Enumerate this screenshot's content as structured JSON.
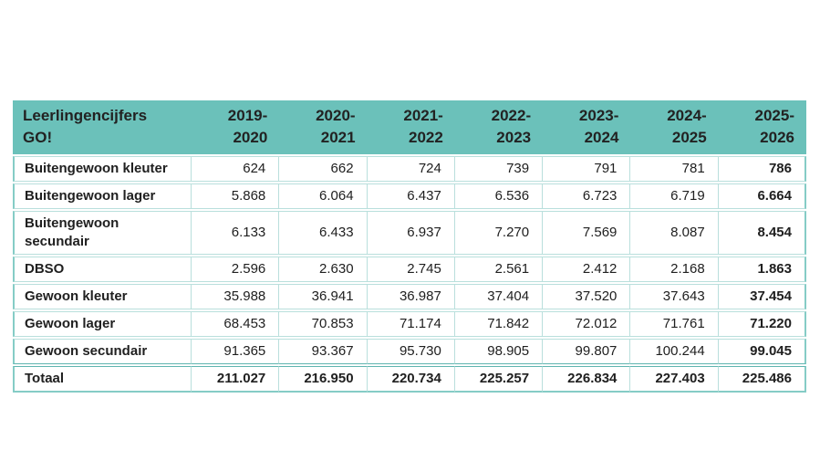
{
  "colors": {
    "header_bg": "#6BC1BA",
    "border_light": "#B9DFDC",
    "border_outer": "#85CCC6",
    "border_dark": "#5FB5AF",
    "text": "#202020",
    "page_bg": "#FFFFFF"
  },
  "table": {
    "header": {
      "title": "Leerlingencijfers\nGO!",
      "years": [
        "2019-\n2020",
        "2020-\n2021",
        "2021-\n2022",
        "2022-\n2023",
        "2023-\n2024",
        "2024-\n2025",
        "2025-\n2026"
      ]
    },
    "rows": [
      {
        "label": "Buitengewoon kleuter",
        "values": [
          "624",
          "662",
          "724",
          "739",
          "791",
          "781",
          "786"
        ]
      },
      {
        "label": "Buitengewoon lager",
        "values": [
          "5.868",
          "6.064",
          "6.437",
          "6.536",
          "6.723",
          "6.719",
          "6.664"
        ]
      },
      {
        "label": "Buitengewoon secundair",
        "values": [
          "6.133",
          "6.433",
          "6.937",
          "7.270",
          "7.569",
          "8.087",
          "8.454"
        ]
      },
      {
        "label": "DBSO",
        "values": [
          "2.596",
          "2.630",
          "2.745",
          "2.561",
          "2.412",
          "2.168",
          "1.863"
        ]
      },
      {
        "label": "Gewoon kleuter",
        "values": [
          "35.988",
          "36.941",
          "36.987",
          "37.404",
          "37.520",
          "37.643",
          "37.454"
        ]
      },
      {
        "label": "Gewoon lager",
        "values": [
          "68.453",
          "70.853",
          "71.174",
          "71.842",
          "72.012",
          "71.761",
          "71.220"
        ]
      },
      {
        "label": "Gewoon secundair",
        "values": [
          "91.365",
          "93.367",
          "95.730",
          "98.905",
          "99.807",
          "100.244",
          "99.045"
        ]
      }
    ],
    "total": {
      "label": "Totaal",
      "values": [
        "211.027",
        "216.950",
        "220.734",
        "225.257",
        "226.834",
        "227.403",
        "225.486"
      ]
    }
  }
}
